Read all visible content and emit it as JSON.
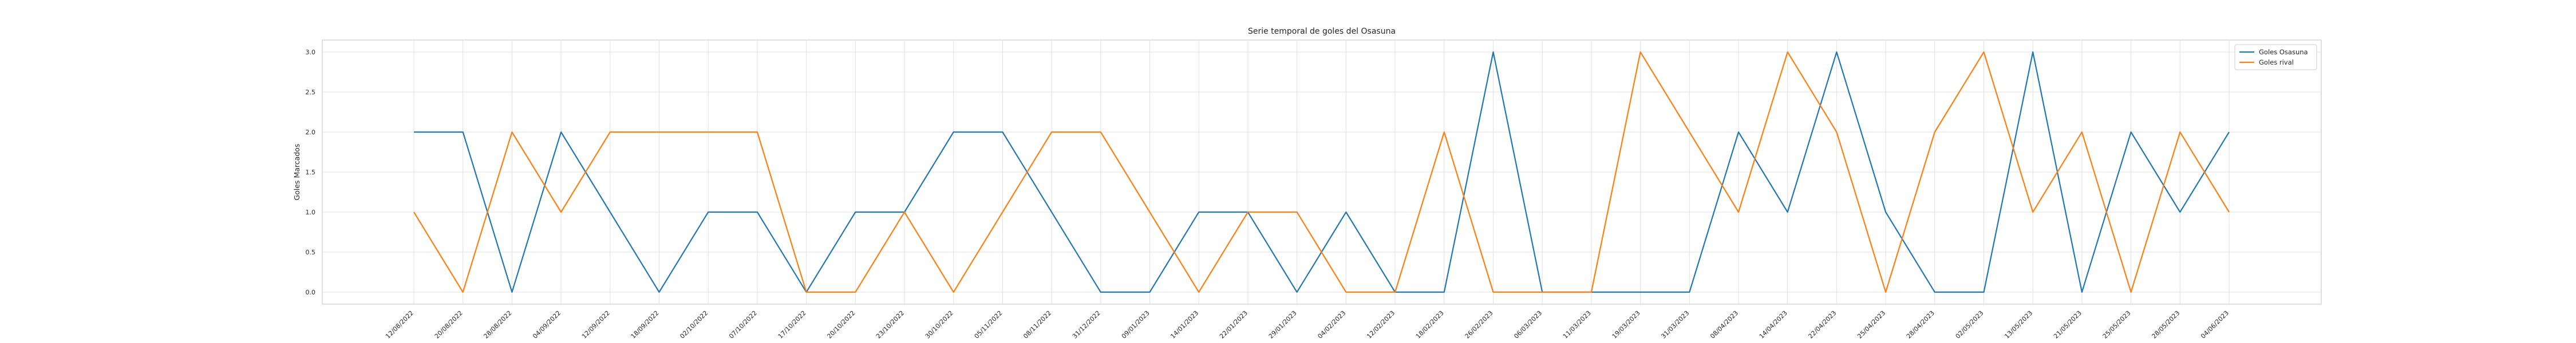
{
  "chart_data": {
    "type": "line",
    "title": "Serie temporal de goles del Osasuna",
    "xlabel": "",
    "ylabel": "Goles Marcados",
    "ylim": [
      -0.15,
      3.15
    ],
    "yticks": [
      "0.0",
      "0.5",
      "1.0",
      "1.5",
      "2.0",
      "2.5",
      "3.0"
    ],
    "ytick_values": [
      0,
      0.5,
      1,
      1.5,
      2,
      2.5,
      3
    ],
    "grid": true,
    "legend_position": "top-right",
    "x": [
      "12/08/2022",
      "20/08/2022",
      "28/08/2022",
      "04/09/2022",
      "12/09/2022",
      "18/09/2022",
      "02/10/2022",
      "07/10/2022",
      "17/10/2022",
      "20/10/2022",
      "23/10/2022",
      "30/10/2022",
      "05/11/2022",
      "08/11/2022",
      "31/12/2022",
      "09/01/2023",
      "14/01/2023",
      "22/01/2023",
      "29/01/2023",
      "04/02/2023",
      "12/02/2023",
      "18/02/2023",
      "26/02/2023",
      "06/03/2023",
      "11/03/2023",
      "19/03/2023",
      "31/03/2023",
      "08/04/2023",
      "14/04/2023",
      "22/04/2023",
      "25/04/2023",
      "28/04/2023",
      "02/05/2023",
      "13/05/2023",
      "21/05/2023",
      "25/05/2023",
      "28/05/2023",
      "04/06/2023"
    ],
    "series": [
      {
        "name": "Goles Osasuna",
        "color": "#1f77b4",
        "values": [
          2,
          2,
          0,
          2,
          1,
          0,
          1,
          1,
          0,
          1,
          1,
          2,
          2,
          1,
          0,
          0,
          1,
          1,
          0,
          1,
          0,
          0,
          3,
          0,
          0,
          0,
          0,
          2,
          1,
          3,
          1,
          0,
          0,
          3,
          0,
          2,
          1,
          2
        ]
      },
      {
        "name": "Goles rival",
        "color": "#ff7f0e",
        "values": [
          1,
          0,
          2,
          1,
          2,
          2,
          2,
          2,
          0,
          0,
          1,
          0,
          1,
          2,
          2,
          1,
          0,
          1,
          1,
          0,
          0,
          2,
          0,
          0,
          0,
          3,
          2,
          1,
          3,
          2,
          0,
          2,
          3,
          1,
          2,
          0,
          2,
          1
        ]
      }
    ]
  }
}
